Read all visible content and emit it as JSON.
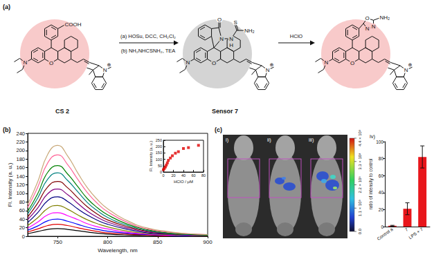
{
  "reaction": {
    "label": "(a)",
    "structures": [
      {
        "name": "CS 2",
        "atoms": {
          "acid": "COOH",
          "amine": "N",
          "ring_o": "O",
          "indole_n": "N",
          "charge": "⊕"
        }
      },
      {
        "name": "Sensor 7",
        "atoms": {
          "carbonyl_o": "O",
          "thione_s": "S",
          "n1": "N",
          "n2": "N",
          "nh": "H",
          "amino": "NH₂",
          "amine": "N",
          "ring_o": "O",
          "indole_n": "N",
          "charge": "⊕"
        }
      },
      {
        "atoms": {
          "oxadiazole_o": "O",
          "n1": "N",
          "n2": "N",
          "amino": "NH₂",
          "amine": "N",
          "ring_o": "O",
          "indole_n": "N",
          "charge": "⊕"
        }
      }
    ],
    "arrows": [
      {
        "above": "(a) HOSu, DCC, CH₂Cl₂",
        "below": "(b) NH₂NHCSNH₂, TEA"
      },
      {
        "above": "HClO"
      }
    ]
  },
  "spectra_panel": {
    "label": "(b)"
  },
  "imaging": {
    "label": "(c)",
    "images": [
      "i)",
      "ii)",
      "iii)"
    ],
    "chart_label": "iv)",
    "colorbar": {
      "range": [
        0,
        4400
      ],
      "ticks": [
        {
          "value": 0,
          "label": "0.0"
        },
        {
          "value": 1100,
          "label": "1.1 × 10³"
        },
        {
          "value": 2200,
          "label": "2.2 × 10³"
        },
        {
          "value": 3300,
          "label": "3.3 × 10³"
        },
        {
          "value": 4400,
          "label": "4.4 × 10³"
        }
      ]
    }
  },
  "chart_data": [
    {
      "type": "line",
      "xlabel": "Wavelength, nm",
      "ylabel": "Fl. Intensity (a. u.)",
      "x": [
        720,
        730,
        740,
        750,
        760,
        770,
        780,
        790,
        800,
        820,
        840,
        860,
        880,
        900
      ],
      "series": [
        {
          "color": "#000000",
          "values": [
            6,
            11,
            16,
            18,
            16,
            13,
            10,
            7,
            5,
            3,
            2,
            1,
            1,
            0
          ]
        },
        {
          "color": "#e00000",
          "values": [
            10,
            17,
            25,
            28,
            25,
            20,
            15,
            11,
            8,
            5,
            3,
            1,
            1,
            1
          ]
        },
        {
          "color": "#0000ff",
          "values": [
            14,
            24,
            36,
            40,
            35,
            28,
            21,
            16,
            12,
            7,
            4,
            2,
            1,
            1
          ]
        },
        {
          "color": "#ff00ff",
          "values": [
            19,
            33,
            50,
            55,
            48,
            39,
            29,
            22,
            17,
            9,
            5,
            3,
            2,
            1
          ]
        },
        {
          "color": "#808000",
          "values": [
            25,
            43,
            65,
            72,
            63,
            50,
            38,
            29,
            22,
            12,
            6,
            4,
            2,
            1
          ]
        },
        {
          "color": "#000080",
          "values": [
            32,
            55,
            83,
            92,
            81,
            64,
            49,
            37,
            28,
            16,
            8,
            5,
            3,
            2
          ]
        },
        {
          "color": "#800080",
          "values": [
            39,
            66,
            99,
            110,
            97,
            77,
            58,
            44,
            33,
            19,
            10,
            6,
            3,
            2
          ]
        },
        {
          "color": "#800000",
          "values": [
            45,
            77,
            115,
            128,
            113,
            90,
            68,
            51,
            38,
            22,
            12,
            6,
            4,
            3
          ]
        },
        {
          "color": "#008080",
          "values": [
            52,
            89,
            133,
            148,
            130,
            104,
            78,
            59,
            44,
            25,
            13,
            7,
            4,
            3
          ]
        },
        {
          "color": "#008000",
          "values": [
            58,
            99,
            149,
            165,
            145,
            116,
            87,
            66,
            50,
            28,
            15,
            8,
            5,
            3
          ]
        },
        {
          "color": "#ff6699",
          "values": [
            67,
            114,
            171,
            190,
            167,
            133,
            101,
            76,
            57,
            32,
            17,
            10,
            6,
            4
          ]
        },
        {
          "color": "#c8a878",
          "values": [
            74,
            127,
            191,
            212,
            187,
            148,
            112,
            85,
            64,
            36,
            19,
            11,
            6,
            4
          ]
        }
      ],
      "xlim": [
        720,
        900
      ],
      "xticks": [
        750,
        800,
        850,
        900
      ],
      "ylim": [
        0,
        240
      ],
      "yticks": [
        0,
        20,
        40,
        60,
        80,
        100,
        120,
        140,
        160,
        180,
        200,
        220,
        240
      ]
    },
    {
      "type": "scatter",
      "xlabel": "HClO / μM",
      "ylabel": "Fl. Intensity (a. u.)",
      "x": [
        0,
        2,
        4,
        6,
        8,
        10,
        14,
        18,
        24,
        30,
        40,
        50,
        70
      ],
      "values": [
        18,
        28,
        40,
        55,
        72,
        92,
        110,
        128,
        148,
        160,
        185,
        192,
        210
      ],
      "color": "#e00000",
      "marker": "square",
      "xlim": [
        0,
        80
      ],
      "xticks": [
        0,
        20,
        40,
        60,
        80
      ],
      "ylim": [
        0,
        250
      ],
      "yticks": [
        0,
        50,
        100,
        150,
        200,
        250
      ]
    },
    {
      "type": "bar",
      "ylabel": "ratio of intensity to control",
      "categories": [
        "Control a",
        "7",
        "LPS + 7"
      ],
      "values": [
        1,
        21,
        82
      ],
      "errors": [
        0.5,
        7,
        13
      ],
      "color": "#e8161b",
      "ylim": [
        0,
        100
      ],
      "yticks": [
        0,
        20,
        40,
        60,
        80,
        100
      ]
    }
  ]
}
